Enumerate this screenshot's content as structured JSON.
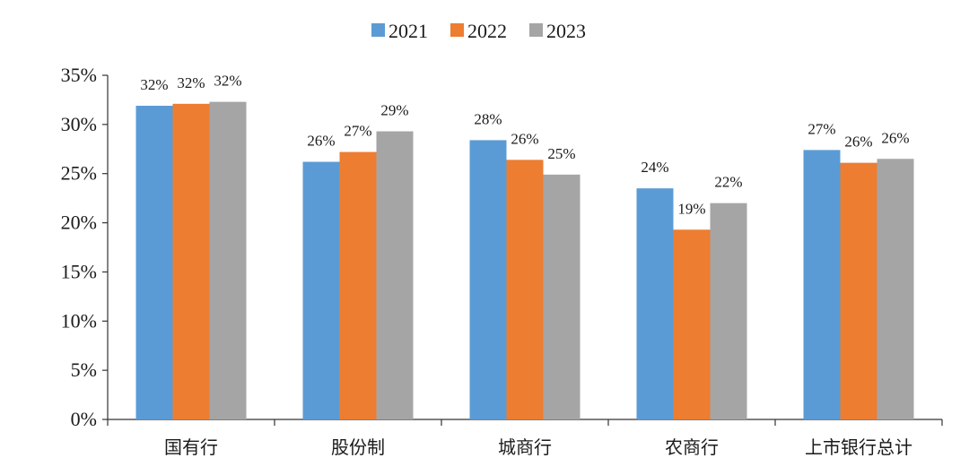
{
  "chart_data": {
    "type": "bar",
    "title": "",
    "xlabel": "",
    "ylabel": "",
    "categories": [
      "国有行",
      "股份制",
      "城商行",
      "农商行",
      "上市银行总计"
    ],
    "series": [
      {
        "name": "2021",
        "color": "#5b9bd5",
        "values": [
          31.9,
          26.2,
          28.4,
          23.5,
          27.4
        ],
        "labels": [
          "32%",
          "26%",
          "28%",
          "24%",
          "27%"
        ]
      },
      {
        "name": "2022",
        "color": "#ed7d31",
        "values": [
          32.1,
          27.2,
          26.4,
          19.3,
          26.1
        ],
        "labels": [
          "32%",
          "27%",
          "26%",
          "19%",
          "26%"
        ]
      },
      {
        "name": "2023",
        "color": "#a5a5a5",
        "values": [
          32.3,
          29.3,
          24.9,
          22.0,
          26.5
        ],
        "labels": [
          "32%",
          "29%",
          "25%",
          "22%",
          "26%"
        ]
      }
    ],
    "ylim": [
      0,
      35
    ],
    "yticks": [
      0,
      5,
      10,
      15,
      20,
      25,
      30,
      35
    ],
    "ytick_labels": [
      "0%",
      "5%",
      "10%",
      "15%",
      "20%",
      "25%",
      "30%",
      "35%"
    ],
    "legend_position": "top-center",
    "grid": false
  }
}
